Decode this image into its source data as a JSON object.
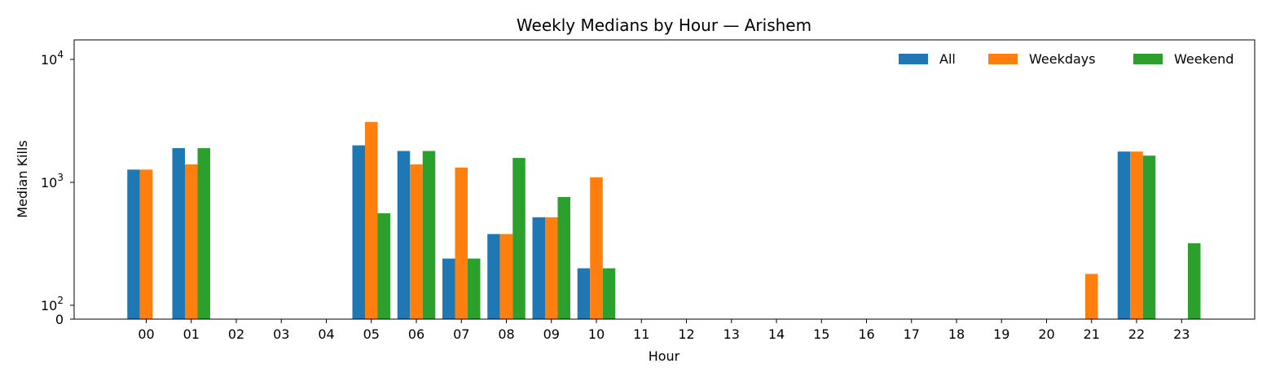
{
  "chart_data": {
    "type": "bar",
    "title": "Weekly Medians by Hour — Arishem",
    "xlabel": "Hour",
    "ylabel": "Median Kills",
    "yscale": "symlog",
    "ylim": [
      0,
      14000
    ],
    "y_ticks": [
      {
        "value": 0,
        "base": "0",
        "exp": ""
      },
      {
        "value": 100,
        "base": "10",
        "exp": "2"
      },
      {
        "value": 1000,
        "base": "10",
        "exp": "3"
      },
      {
        "value": 10000,
        "base": "10",
        "exp": "4"
      }
    ],
    "categories": [
      "00",
      "01",
      "02",
      "03",
      "04",
      "05",
      "06",
      "07",
      "08",
      "09",
      "10",
      "11",
      "12",
      "13",
      "14",
      "15",
      "16",
      "17",
      "18",
      "19",
      "20",
      "21",
      "22",
      "23"
    ],
    "grid": false,
    "legend_position": "top-right",
    "series": [
      {
        "name": "All",
        "color": "#1f77b4",
        "values": [
          1270,
          1900,
          0,
          0,
          0,
          2000,
          1800,
          240,
          380,
          520,
          200,
          0,
          0,
          0,
          0,
          0,
          0,
          0,
          0,
          0,
          0,
          0,
          1780,
          0
        ]
      },
      {
        "name": "Weekdays",
        "color": "#ff7f0e",
        "values": [
          1270,
          1400,
          0,
          0,
          0,
          3100,
          1400,
          1320,
          380,
          520,
          1100,
          0,
          0,
          0,
          0,
          0,
          0,
          0,
          0,
          0,
          0,
          180,
          1780,
          0
        ]
      },
      {
        "name": "Weekend",
        "color": "#2ca02c",
        "values": [
          0,
          1900,
          0,
          0,
          0,
          560,
          1800,
          240,
          1580,
          760,
          200,
          0,
          0,
          0,
          0,
          0,
          0,
          0,
          0,
          0,
          0,
          0,
          1650,
          320
        ]
      }
    ]
  }
}
